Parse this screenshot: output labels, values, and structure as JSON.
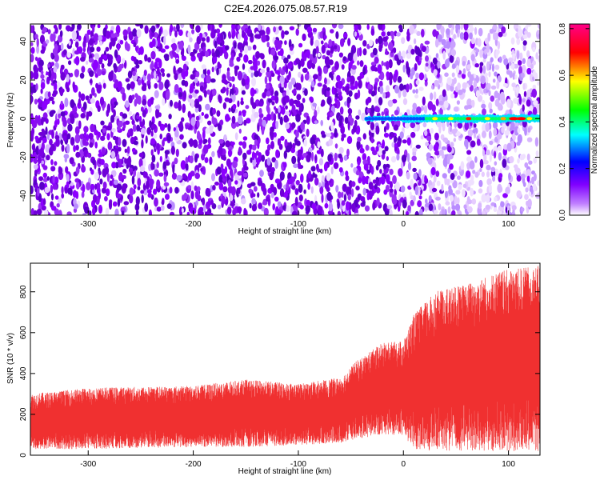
{
  "title": "C2E4.2026.075.08.57.R19",
  "chart_data": [
    {
      "type": "heatmap",
      "xlabel": "Height of straight line (km)",
      "ylabel": "Frequency (Hz)",
      "xlim": [
        -355,
        130
      ],
      "ylim": [
        -50,
        49
      ],
      "x_ticks": [
        -300,
        -200,
        -100,
        0,
        100
      ],
      "y_ticks": [
        -40,
        -20,
        0,
        20,
        40
      ],
      "colorbar": {
        "label": "Normalized spectral amplitude",
        "range": [
          0,
          0.82
        ],
        "ticks": [
          0.0,
          0.2,
          0.4,
          0.6,
          0.8
        ],
        "colors": [
          "#ffffff",
          "#8800ff",
          "#0000ff",
          "#00ffff",
          "#00ff00",
          "#ffff00",
          "#ff0000",
          "#ff0088"
        ]
      },
      "feature": {
        "frequency_hz": 0,
        "x_start_km": -35,
        "peak_x_km": 105,
        "peak_amplitude": 0.82
      },
      "grid": false
    },
    {
      "type": "area",
      "xlabel": "Height of straight line (km)",
      "ylabel": "SNR (10 * v/v)",
      "xlim": [
        -355,
        130
      ],
      "ylim": [
        0,
        940
      ],
      "x_ticks": [
        -300,
        -200,
        -100,
        0,
        100
      ],
      "y_ticks": [
        0,
        200,
        400,
        600,
        800
      ],
      "color": "#f03030",
      "envelope": {
        "x": [
          -355,
          -300,
          -200,
          -150,
          -100,
          -60,
          -45,
          -20,
          0,
          10,
          30,
          60,
          90,
          130
        ],
        "low": [
          30,
          30,
          40,
          40,
          50,
          60,
          80,
          100,
          100,
          30,
          20,
          20,
          20,
          20
        ],
        "high": [
          300,
          330,
          340,
          370,
          350,
          380,
          460,
          550,
          560,
          690,
          800,
          840,
          900,
          930
        ]
      },
      "grid": false
    }
  ]
}
